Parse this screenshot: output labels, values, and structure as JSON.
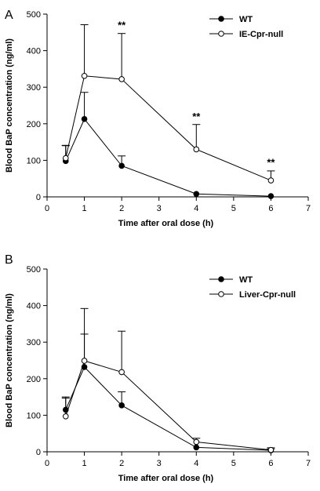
{
  "chart_data": [
    {
      "type": "line",
      "panel": "A",
      "xlabel": "Time after oral dose (h)",
      "ylabel": "Blood BaP concentration (ng/ml)",
      "xlim": [
        0,
        7
      ],
      "ylim": [
        0,
        500
      ],
      "xticks": [
        0,
        1,
        2,
        3,
        4,
        5,
        6,
        7
      ],
      "yticks": [
        0,
        100,
        200,
        300,
        400,
        500
      ],
      "x": [
        0.5,
        1,
        2,
        4,
        6
      ],
      "legend_position": "top-right",
      "series": [
        {
          "name": "WT",
          "marker": "filled-circle",
          "values": [
            98,
            213,
            85,
            8,
            2
          ],
          "errors": [
            42,
            73,
            27,
            0,
            0
          ]
        },
        {
          "name": "IE-Cpr-null",
          "marker": "open-circle",
          "values": [
            106,
            331,
            322,
            130,
            45
          ],
          "errors": [
            35,
            140,
            125,
            68,
            26
          ]
        }
      ],
      "annotations": [
        {
          "x": 2,
          "y": 460,
          "text": "**"
        },
        {
          "x": 4,
          "y": 210,
          "text": "**"
        },
        {
          "x": 6,
          "y": 85,
          "text": "**"
        }
      ]
    },
    {
      "type": "line",
      "panel": "B",
      "xlabel": "Time after oral dose (h)",
      "ylabel": "Blood BaP concentration (ng/ml)",
      "xlim": [
        0,
        7
      ],
      "ylim": [
        0,
        500
      ],
      "xticks": [
        0,
        1,
        2,
        3,
        4,
        5,
        6,
        7
      ],
      "yticks": [
        0,
        100,
        200,
        300,
        400,
        500
      ],
      "x": [
        0.5,
        1,
        2,
        4,
        6
      ],
      "legend_position": "top-right",
      "series": [
        {
          "name": "WT",
          "marker": "filled-circle",
          "values": [
            115,
            232,
            127,
            12,
            4
          ],
          "errors": [
            35,
            90,
            37,
            0,
            4
          ]
        },
        {
          "name": "Liver-Cpr-null",
          "marker": "open-circle",
          "values": [
            97,
            249,
            218,
            27,
            5
          ],
          "errors": [
            50,
            143,
            112,
            10,
            6
          ]
        }
      ],
      "annotations": []
    }
  ]
}
